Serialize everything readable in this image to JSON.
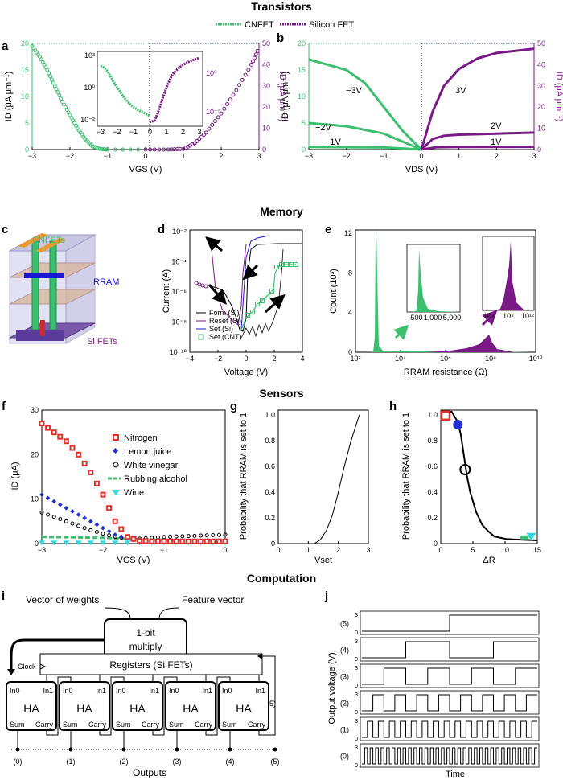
{
  "sections": {
    "transistors": "Transistors",
    "memory": "Memory",
    "sensors": "Sensors",
    "computation": "Computation"
  },
  "panel_letters": [
    "a",
    "b",
    "c",
    "d",
    "e",
    "f",
    "g",
    "h",
    "i",
    "j"
  ],
  "colors": {
    "cnfet": "#3cbf6e",
    "silicon": "#7a1a86",
    "rram_blue": "#1a1ad0",
    "red": "#e0302a",
    "cyan": "#30d8e0",
    "blue": "#2030d0",
    "black": "#000000"
  },
  "legend_transistors": {
    "cnfet": "CNFET",
    "silicon": "Silicon FET"
  },
  "chart_data": [
    {
      "panel": "a",
      "type": "scatter",
      "xlabel": "VGS (V)",
      "ylabel_left": "ID (μA μm⁻¹)",
      "ylabel_right": "ID (μA μm⁻¹)",
      "xlim": [
        -3,
        3
      ],
      "ylim_left": [
        0,
        20
      ],
      "ylim_right": [
        0,
        50
      ],
      "x_ticks": [
        "−3",
        "−2",
        "−1",
        "0",
        "1",
        "2",
        "3"
      ],
      "y_ticks_left": [
        "0",
        "5",
        "10",
        "15",
        "20"
      ],
      "y_ticks_right": [
        "0",
        "10",
        "20",
        "30",
        "40",
        "50"
      ],
      "series": [
        {
          "name": "CNFET",
          "x": [
            -3,
            -2.8,
            -2.6,
            -2.4,
            -2.2,
            -2,
            -1.8,
            -1.6,
            -1.4,
            -1.2,
            -1,
            0
          ],
          "y": [
            19.5,
            17.5,
            15,
            12,
            9,
            6.5,
            4,
            2,
            0.6,
            0.1,
            0,
            0
          ]
        },
        {
          "name": "Silicon FET",
          "x": [
            0,
            0.6,
            1,
            1.3,
            1.6,
            2,
            2.4,
            2.8,
            3
          ],
          "y": [
            0,
            0,
            0.3,
            3,
            8,
            17,
            28,
            40,
            48
          ]
        }
      ],
      "inset": {
        "y_ticks_left": [
          "10²",
          "10⁰",
          "10⁻²"
        ],
        "y_ticks_right": [
          "10⁰",
          "10⁻⁵"
        ],
        "x_ticks": [
          "−3",
          "−2",
          "−1",
          "0",
          "1",
          "2",
          "3"
        ]
      }
    },
    {
      "panel": "b",
      "type": "line",
      "xlabel": "VDS (V)",
      "ylabel_left": "ID (μA μm⁻¹)",
      "ylabel_right": "ID (μA μm⁻¹)",
      "xlim": [
        -3,
        3
      ],
      "ylim_left": [
        0,
        20
      ],
      "ylim_right": [
        0,
        50
      ],
      "x_ticks": [
        "−3",
        "−2",
        "−1",
        "0",
        "1",
        "2",
        "3"
      ],
      "y_ticks_left": [
        "0",
        "5",
        "10",
        "15",
        "20"
      ],
      "y_ticks_right": [
        "0",
        "10",
        "20",
        "30",
        "40",
        "50"
      ],
      "curve_labels": [
        "−3V",
        "−2V",
        "−1V",
        "3V",
        "2V",
        "1V"
      ],
      "series": [
        {
          "name": "−3V",
          "x": [
            -3,
            -2.5,
            -2,
            -1.5,
            -1,
            -0.5,
            0
          ],
          "y": [
            17,
            16,
            15,
            12.5,
            8,
            3.5,
            0
          ]
        },
        {
          "name": "−2V",
          "x": [
            -3,
            -2,
            -1,
            -0.5,
            0
          ],
          "y": [
            5,
            4.4,
            3,
            1.5,
            0
          ]
        },
        {
          "name": "−1V",
          "x": [
            -3,
            -1,
            0
          ],
          "y": [
            0.5,
            0.4,
            0
          ]
        },
        {
          "name": "3V",
          "x": [
            0,
            0.3,
            0.6,
            1,
            1.5,
            2,
            2.5,
            3
          ],
          "y": [
            0,
            18,
            30,
            38,
            43,
            45.5,
            46.5,
            47.5
          ]
        },
        {
          "name": "2V",
          "x": [
            0,
            0.3,
            0.6,
            1,
            2,
            3
          ],
          "y": [
            0,
            5,
            6.5,
            7,
            7.5,
            8
          ]
        },
        {
          "name": "1V",
          "x": [
            0,
            0.4,
            1,
            3
          ],
          "y": [
            0,
            1.1,
            1.2,
            1.3
          ]
        }
      ]
    },
    {
      "panel": "d",
      "type": "line",
      "xlabel": "Voltage (V)",
      "ylabel": "Current (A)",
      "xlim": [
        -4,
        4
      ],
      "x_ticks": [
        "−4",
        "−2",
        "0",
        "2",
        "4"
      ],
      "y_ticks": [
        "10⁻²",
        "10⁻⁴",
        "10⁻⁶",
        "10⁻⁸",
        "10⁻¹⁰"
      ],
      "legend": [
        "Form (Si)",
        "Reset (Si)",
        "Set (Si)",
        "Set (CNT)"
      ]
    },
    {
      "panel": "e",
      "type": "area",
      "xlabel": "RRAM resistance (Ω)",
      "ylabel": "Count (10³)",
      "x_ticks": [
        "10²",
        "10⁴",
        "10⁶",
        "10⁸",
        "10¹⁰"
      ],
      "y_ticks": [
        "0",
        "4",
        "8",
        "12"
      ],
      "inset1_ticks": [
        "500",
        "1,000",
        "5,000"
      ],
      "inset2_ticks": [
        "10⁴",
        "10⁸",
        "10¹²"
      ]
    },
    {
      "panel": "f",
      "type": "scatter",
      "xlabel": "VGS (V)",
      "ylabel": "ID (μA)",
      "xlim": [
        -3,
        0
      ],
      "ylim": [
        0,
        30
      ],
      "x_ticks": [
        "−3",
        "−2",
        "−1",
        "0"
      ],
      "y_ticks": [
        "0",
        "10",
        "20",
        "30"
      ],
      "series": [
        {
          "name": "Nitrogen",
          "x": [
            -3,
            -2.8,
            -2.6,
            -2.4,
            -2.2,
            -2,
            -1.8,
            -1.6,
            -1.4,
            -1.2,
            -1,
            -0.6,
            0
          ],
          "y": [
            27,
            25,
            23,
            20,
            16,
            11,
            5,
            1.5,
            0.6,
            0.5,
            0.5,
            0.5,
            0.5
          ]
        },
        {
          "name": "Lemon juice",
          "x": [
            -3,
            -2.6,
            -2.2,
            -1.8,
            -1.5,
            -1,
            0
          ],
          "y": [
            11,
            8,
            5,
            2,
            0.8,
            0.5,
            0.5
          ]
        },
        {
          "name": "White vinegar",
          "x": [
            -3,
            -2.6,
            -2.2,
            -1.8,
            -1.5,
            -1,
            0
          ],
          "y": [
            7,
            5,
            3,
            1.5,
            1,
            1.5,
            2
          ]
        },
        {
          "name": "Rubbing alcohol",
          "x": [
            -3,
            -2,
            -1,
            0
          ],
          "y": [
            1.5,
            1.3,
            0.8,
            0.8
          ]
        },
        {
          "name": "Wine",
          "x": [
            -3,
            -2,
            -1,
            0
          ],
          "y": [
            0.3,
            0.3,
            0.3,
            0.3
          ]
        }
      ]
    },
    {
      "panel": "g",
      "type": "line",
      "xlabel": "Vset",
      "ylabel": "Probability that RRAM is set to 1",
      "xlim": [
        0,
        3
      ],
      "ylim": [
        0,
        1
      ],
      "x_ticks": [
        "0",
        "1",
        "2",
        "3"
      ],
      "y_ticks": [
        "0",
        "0.2",
        "0.4",
        "0.6",
        "0.8",
        "1.0"
      ],
      "x": [
        1.2,
        1.4,
        1.6,
        1.8,
        2.0,
        2.2,
        2.4,
        2.6,
        2.7
      ],
      "y": [
        0,
        0.03,
        0.1,
        0.22,
        0.4,
        0.6,
        0.78,
        0.93,
        1.0
      ]
    },
    {
      "panel": "h",
      "type": "line",
      "xlabel": "ΔR",
      "ylabel": "Probability that RRAM is set to 1",
      "xlim": [
        0,
        15
      ],
      "ylim": [
        0,
        1
      ],
      "x_ticks": [
        "0",
        "5",
        "10",
        "15"
      ],
      "y_ticks": [
        "0",
        "0.2",
        "0.4",
        "0.6",
        "0.8",
        "1.0"
      ],
      "x": [
        0,
        1,
        2,
        2.5,
        3,
        3.5,
        4,
        5,
        6,
        7,
        8,
        10,
        15
      ],
      "y": [
        1,
        1,
        0.92,
        0.82,
        0.66,
        0.5,
        0.38,
        0.22,
        0.12,
        0.07,
        0.03,
        0.01,
        0
      ],
      "markers": [
        {
          "x": 0,
          "y": 0.97
        },
        {
          "x": 2,
          "y": 0.9
        },
        {
          "x": 3.2,
          "y": 0.55
        },
        {
          "x": 13,
          "y": 0.02
        },
        {
          "x": 14,
          "y": 0.02
        }
      ]
    }
  ],
  "panel_c": {
    "cnfets": "CNFETs",
    "rram": "RRAM",
    "sifets": "Si FETs"
  },
  "panel_i": {
    "vector_of_weights": "Vector of weights",
    "feature_vector": "Feature vector",
    "multiply_line1": "1-bit",
    "multiply_line2": "multiply",
    "registers": "Registers (Si FETs)",
    "clock": "Clock",
    "feedback": "(5)",
    "ha_label": "HA",
    "in0": "In0",
    "in1": "In1",
    "sum": "Sum",
    "carry": "Carry",
    "outputs_label": "Outputs",
    "output_numbers": [
      "(0)",
      "(1)",
      "(2)",
      "(3)",
      "(4)",
      "(5)"
    ]
  },
  "panel_j": {
    "ylabel": "Output voltage (V)",
    "xlabel": "Time",
    "row_labels": [
      "(5)",
      "(4)",
      "(3)",
      "(2)",
      "(1)",
      "(0)"
    ],
    "tick_top": "3",
    "tick_bottom": "0"
  }
}
